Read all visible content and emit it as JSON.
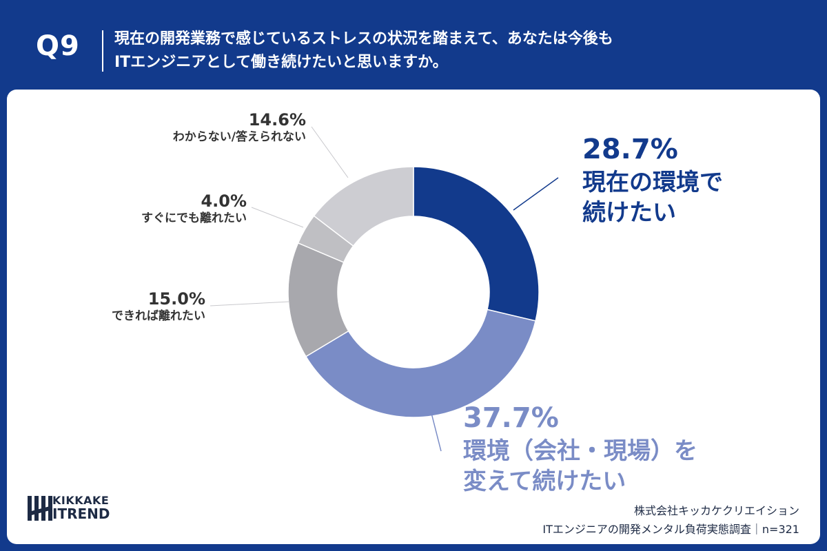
{
  "header": {
    "qnum": "Q9",
    "title_line1": "現在の開発業務で感じているストレスの状況を踏まえて、あなたは今後も",
    "title_line2": "ITエンジニアとして働き続けたいと思いますか。"
  },
  "colors": {
    "header_bg": "#123a8c",
    "slice_dark_blue": "#123a8c",
    "slice_light_blue": "#7a8cc6",
    "slice_dark_gray": "#a8a8ad",
    "slice_mid_gray": "#bfbfc3",
    "slice_light_gray": "#cdcdd2"
  },
  "chart_data": {
    "type": "pie",
    "donut": true,
    "title": "",
    "slices": [
      {
        "label_lines": [
          "現在の環境で",
          "続けたい"
        ],
        "value": 28.7,
        "value_label": "28.7%",
        "color": "#123a8c",
        "text_color": "#123a8c",
        "style": "large"
      },
      {
        "label_lines": [
          "環境（会社・現場）を",
          "変えて続けたい"
        ],
        "value": 37.7,
        "value_label": "37.7%",
        "color": "#7a8cc6",
        "text_color": "#7a8cc6",
        "style": "large"
      },
      {
        "label_lines": [
          "できれば離れたい"
        ],
        "value": 15.0,
        "value_label": "15.0%",
        "color": "#a8a8ad",
        "text_color": "#333333",
        "style": "small"
      },
      {
        "label_lines": [
          "すぐにでも離れたい"
        ],
        "value": 4.0,
        "value_label": "4.0%",
        "color": "#bfbfc3",
        "text_color": "#333333",
        "style": "small"
      },
      {
        "label_lines": [
          "わからない/答えられない"
        ],
        "value": 14.6,
        "value_label": "14.6%",
        "color": "#cdcdd2",
        "text_color": "#333333",
        "style": "small"
      }
    ]
  },
  "logo": {
    "line1": "KIKKAKE",
    "line2": "ITREND"
  },
  "footer": {
    "company": "株式会社キッカケクリエイション",
    "survey": "ITエンジニアの開発メンタル負荷実態調査｜n=321"
  }
}
